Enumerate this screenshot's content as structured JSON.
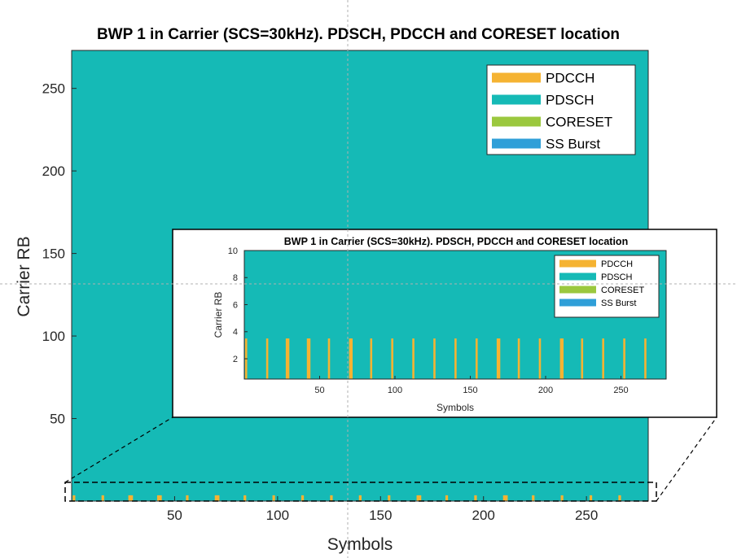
{
  "colors": {
    "background": "#15bab6",
    "pdcch": "#f5b332",
    "pdsch": "#15bab6",
    "coreset": "#9bc83e",
    "ss_burst": "#2f9fd8",
    "axis": "#262626",
    "crosshair": "#b0b0b0"
  },
  "chart_data": [
    {
      "id": "main",
      "type": "heatmap",
      "title": "BWP 1 in Carrier (SCS=30kHz). PDSCH, PDCCH and CORESET location",
      "xlabel": "Symbols",
      "ylabel": "Carrier RB",
      "xlim": [
        0,
        280
      ],
      "ylim": [
        0,
        273
      ],
      "xticks": [
        50,
        100,
        150,
        200,
        250
      ],
      "yticks": [
        50,
        100,
        150,
        200,
        250
      ],
      "grid": false,
      "legend_position": "top-right",
      "legend": [
        "PDCCH",
        "PDSCH",
        "CORESET",
        "SS Burst"
      ],
      "series": [
        {
          "name": "PDSCH",
          "fill": "full"
        },
        {
          "name": "PDCCH",
          "symbols": [
            1,
            15,
            28,
            29,
            42,
            43,
            56,
            70,
            71,
            84,
            98,
            112,
            126,
            140,
            154,
            168,
            169,
            182,
            196,
            210,
            211,
            224,
            238,
            252,
            266
          ],
          "rb_range": [
            0,
            3.5
          ]
        }
      ]
    },
    {
      "id": "inset",
      "type": "heatmap",
      "title": "BWP 1 in Carrier (SCS=30kHz). PDSCH, PDCCH and CORESET location",
      "xlabel": "Symbols",
      "ylabel": "Carrier RB",
      "xlim": [
        0,
        280
      ],
      "ylim": [
        0.5,
        10
      ],
      "xticks": [
        50,
        100,
        150,
        200,
        250
      ],
      "yticks": [
        2,
        4,
        6,
        8,
        10
      ],
      "grid": false,
      "legend_position": "top-right",
      "legend": [
        "PDCCH",
        "PDSCH",
        "CORESET",
        "SS Burst"
      ],
      "series": [
        {
          "name": "PDSCH",
          "fill": "full"
        },
        {
          "name": "PDCCH",
          "symbols": [
            1,
            15,
            28,
            29,
            42,
            43,
            56,
            70,
            71,
            84,
            98,
            112,
            126,
            140,
            154,
            168,
            169,
            182,
            196,
            210,
            211,
            224,
            238,
            252,
            266
          ],
          "rb_range": [
            0.5,
            3.5
          ]
        }
      ]
    }
  ]
}
